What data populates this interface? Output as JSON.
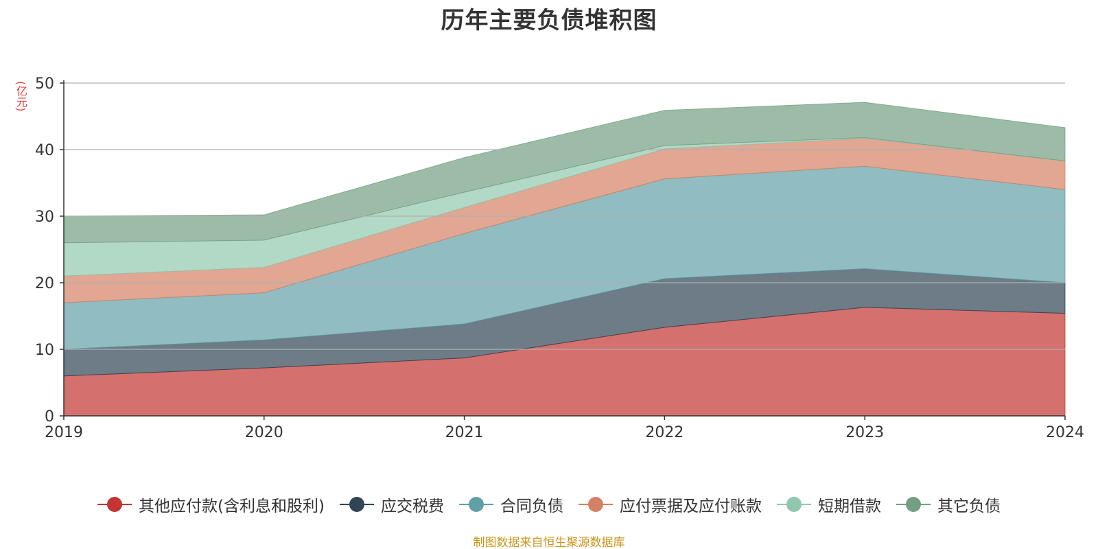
{
  "title": "历年主要负债堆积图",
  "y_unit": "(亿元)",
  "source": "制图数据来自恒生聚源数据库",
  "chart_data": {
    "type": "area",
    "stacked": true,
    "title": "历年主要负债堆积图",
    "ylabel": "(亿元)",
    "xlabel": "",
    "x": [
      "2019",
      "2020",
      "2021",
      "2022",
      "2023",
      "2024"
    ],
    "ylim": [
      0,
      50
    ],
    "yticks": [
      "0",
      "10",
      "20",
      "30",
      "40",
      "50"
    ],
    "grid": true,
    "legend_position": "bottom",
    "series": [
      {
        "name": "其他应付款(含利息和股利)",
        "color": "#c23531",
        "values": [
          6.0,
          7.2,
          8.7,
          13.3,
          16.3,
          15.4
        ]
      },
      {
        "name": "应交税费",
        "color": "#2f4554",
        "values": [
          4.0,
          4.2,
          5.1,
          7.3,
          5.8,
          4.6
        ]
      },
      {
        "name": "合同负债",
        "color": "#61a0a8",
        "values": [
          7.0,
          7.1,
          13.6,
          15.0,
          15.4,
          14.0
        ]
      },
      {
        "name": "应付票据及应付账款",
        "color": "#d48265",
        "values": [
          4.0,
          3.8,
          3.9,
          4.5,
          4.2,
          4.3
        ]
      },
      {
        "name": "短期借款",
        "color": "#91c7ae",
        "values": [
          5.0,
          4.1,
          2.3,
          0.5,
          0.1,
          0.0
        ]
      },
      {
        "name": "其它负债",
        "color": "#749f83",
        "values": [
          4.0,
          3.8,
          5.2,
          5.3,
          5.3,
          5.0
        ]
      }
    ]
  }
}
